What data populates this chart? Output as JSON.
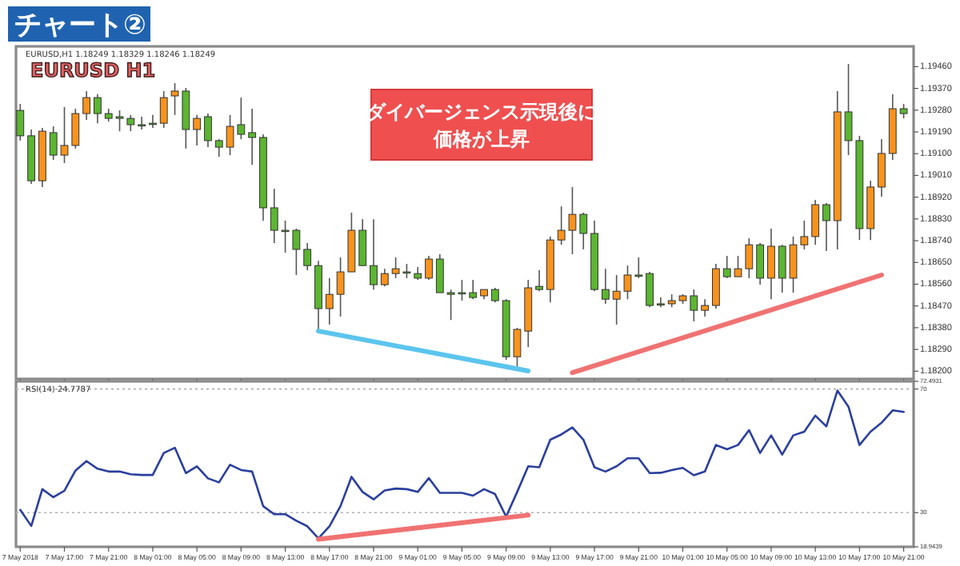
{
  "chart_data": [
    {
      "type": "candlestick",
      "title": "チャート②",
      "annotations": [
        "EURUSD,H1  1.18249 1.18329 1.18246 1.18249",
        "EURUSD H1",
        "ダイバージェンス示現後に",
        "価格が上昇"
      ],
      "x": [
        "2018-05-07T13:00",
        "2018-05-07T14:00",
        "2018-05-07T15:00",
        "2018-05-07T16:00",
        "2018-05-07T17:00",
        "2018-05-07T18:00",
        "2018-05-07T19:00",
        "2018-05-07T20:00",
        "2018-05-07T21:00",
        "2018-05-07T22:00",
        "2018-05-07T23:00",
        "2018-05-08T00:00",
        "2018-05-08T01:00",
        "2018-05-08T02:00",
        "2018-05-08T03:00",
        "2018-05-08T04:00",
        "2018-05-08T05:00",
        "2018-05-08T06:00",
        "2018-05-08T07:00",
        "2018-05-08T08:00",
        "2018-05-08T09:00",
        "2018-05-08T10:00",
        "2018-05-08T11:00",
        "2018-05-08T12:00",
        "2018-05-08T13:00",
        "2018-05-08T14:00",
        "2018-05-08T15:00",
        "2018-05-08T16:00",
        "2018-05-08T17:00",
        "2018-05-08T18:00",
        "2018-05-08T19:00",
        "2018-05-08T20:00",
        "2018-05-08T21:00",
        "2018-05-08T22:00",
        "2018-05-08T23:00",
        "2018-05-09T00:00",
        "2018-05-09T01:00",
        "2018-05-09T02:00",
        "2018-05-09T03:00",
        "2018-05-09T04:00",
        "2018-05-09T05:00",
        "2018-05-09T06:00",
        "2018-05-09T07:00",
        "2018-05-09T08:00",
        "2018-05-09T09:00",
        "2018-05-09T10:00",
        "2018-05-09T11:00",
        "2018-05-09T12:00",
        "2018-05-09T13:00",
        "2018-05-09T14:00",
        "2018-05-09T15:00",
        "2018-05-09T16:00",
        "2018-05-09T17:00",
        "2018-05-09T18:00",
        "2018-05-09T19:00",
        "2018-05-09T20:00",
        "2018-05-09T21:00",
        "2018-05-09T22:00",
        "2018-05-09T23:00",
        "2018-05-10T00:00",
        "2018-05-10T01:00",
        "2018-05-10T02:00",
        "2018-05-10T03:00",
        "2018-05-10T04:00",
        "2018-05-10T05:00",
        "2018-05-10T06:00",
        "2018-05-10T07:00",
        "2018-05-10T08:00",
        "2018-05-10T09:00",
        "2018-05-10T10:00",
        "2018-05-10T11:00",
        "2018-05-10T12:00",
        "2018-05-10T13:00",
        "2018-05-10T14:00",
        "2018-05-10T15:00",
        "2018-05-10T16:00",
        "2018-05-10T17:00",
        "2018-05-10T18:00",
        "2018-05-10T19:00",
        "2018-05-10T20:00",
        "2018-05-10T21:00"
      ],
      "ohlc": [
        [
          1.19279,
          1.19306,
          1.19154,
          1.19174
        ],
        [
          1.19174,
          1.192,
          1.18975,
          1.18988
        ],
        [
          1.18988,
          1.19207,
          1.18962,
          1.19193
        ],
        [
          1.19187,
          1.19213,
          1.19074,
          1.19094
        ],
        [
          1.19094,
          1.19293,
          1.19061,
          1.19134
        ],
        [
          1.19134,
          1.19286,
          1.19121,
          1.19266
        ],
        [
          1.19266,
          1.19359,
          1.1924,
          1.19332
        ],
        [
          1.19332,
          1.19346,
          1.19226,
          1.19266
        ],
        [
          1.19266,
          1.19286,
          1.19233,
          1.19246
        ],
        [
          1.19253,
          1.19279,
          1.19193,
          1.19246
        ],
        [
          1.19246,
          1.1926,
          1.19193,
          1.1922
        ],
        [
          1.1922,
          1.19253,
          1.192,
          1.1922
        ],
        [
          1.19226,
          1.1926,
          1.19207,
          1.19226
        ],
        [
          1.19226,
          1.19359,
          1.19207,
          1.19332
        ],
        [
          1.19339,
          1.19392,
          1.1926,
          1.19359
        ],
        [
          1.19359,
          1.19372,
          1.19121,
          1.192
        ],
        [
          1.192,
          1.1926,
          1.19134,
          1.19246
        ],
        [
          1.19253,
          1.19266,
          1.19127,
          1.19154
        ],
        [
          1.19154,
          1.1916,
          1.19087,
          1.19127
        ],
        [
          1.19127,
          1.1926,
          1.19094,
          1.19213
        ],
        [
          1.1922,
          1.19332,
          1.1916,
          1.1918
        ],
        [
          1.19187,
          1.19286,
          1.19054,
          1.19167
        ],
        [
          1.19167,
          1.1918,
          1.18823,
          1.18876
        ],
        [
          1.18876,
          1.18955,
          1.1873,
          1.18783
        ],
        [
          1.18783,
          1.18823,
          1.1869,
          1.18783
        ],
        [
          1.18783,
          1.1879,
          1.18598,
          1.18704
        ],
        [
          1.18704,
          1.1873,
          1.18618,
          1.18637
        ],
        [
          1.18637,
          1.18657,
          1.18366,
          1.18459
        ],
        [
          1.18459,
          1.18585,
          1.18393,
          1.18518
        ],
        [
          1.18518,
          1.18671,
          1.18426,
          1.18611
        ],
        [
          1.18611,
          1.18856,
          1.18611,
          1.18783
        ],
        [
          1.18783,
          1.18829,
          1.18637,
          1.18637
        ],
        [
          1.18637,
          1.18829,
          1.18538,
          1.18558
        ],
        [
          1.18558,
          1.18624,
          1.18551,
          1.18604
        ],
        [
          1.18604,
          1.18671,
          1.18585,
          1.18624
        ],
        [
          1.18611,
          1.18644,
          1.18585,
          1.18611
        ],
        [
          1.18604,
          1.18631,
          1.18578,
          1.18585
        ],
        [
          1.18585,
          1.18677,
          1.18578,
          1.18664
        ],
        [
          1.18664,
          1.18684,
          1.18525,
          1.18525
        ],
        [
          1.18525,
          1.18538,
          1.18412,
          1.18518
        ],
        [
          1.18525,
          1.18578,
          1.18492,
          1.18525
        ],
        [
          1.18525,
          1.18578,
          1.18498,
          1.18505
        ],
        [
          1.18512,
          1.18538,
          1.18498,
          1.18538
        ],
        [
          1.18538,
          1.18545,
          1.18485,
          1.18492
        ],
        [
          1.18492,
          1.18498,
          1.18247,
          1.1826
        ],
        [
          1.1826,
          1.18379,
          1.18201,
          1.18373
        ],
        [
          1.18366,
          1.18578,
          1.183,
          1.18545
        ],
        [
          1.18551,
          1.18618,
          1.18531,
          1.18538
        ],
        [
          1.18538,
          1.18757,
          1.18485,
          1.18743
        ],
        [
          1.18743,
          1.18882,
          1.18723,
          1.18783
        ],
        [
          1.18783,
          1.18962,
          1.18684,
          1.18849
        ],
        [
          1.18849,
          1.18856,
          1.18704,
          1.1877
        ],
        [
          1.1877,
          1.18823,
          1.18531,
          1.18538
        ],
        [
          1.18538,
          1.18624,
          1.18479,
          1.18498
        ],
        [
          1.18498,
          1.18598,
          1.18393,
          1.18531
        ],
        [
          1.18531,
          1.18637,
          1.18498,
          1.18598
        ],
        [
          1.18598,
          1.18671,
          1.18585,
          1.18598
        ],
        [
          1.18604,
          1.18611,
          1.18465,
          1.18472
        ],
        [
          1.18479,
          1.18505,
          1.18465,
          1.18479
        ],
        [
          1.18479,
          1.18518,
          1.18465,
          1.18492
        ],
        [
          1.18492,
          1.18518,
          1.18479,
          1.18512
        ],
        [
          1.18512,
          1.18538,
          1.18406,
          1.18452
        ],
        [
          1.18452,
          1.18498,
          1.18426,
          1.18472
        ],
        [
          1.18472,
          1.18644,
          1.18459,
          1.18624
        ],
        [
          1.18624,
          1.18677,
          1.18585,
          1.18591
        ],
        [
          1.18591,
          1.18677,
          1.18591,
          1.18624
        ],
        [
          1.18624,
          1.1875,
          1.18585,
          1.18723
        ],
        [
          1.18723,
          1.1873,
          1.18558,
          1.18585
        ],
        [
          1.18585,
          1.1879,
          1.18498,
          1.18717
        ],
        [
          1.18717,
          1.18723,
          1.18525,
          1.18585
        ],
        [
          1.18585,
          1.18757,
          1.18525,
          1.18723
        ],
        [
          1.18723,
          1.18823,
          1.18704,
          1.18757
        ],
        [
          1.18757,
          1.18909,
          1.18723,
          1.18889
        ],
        [
          1.18889,
          1.18896,
          1.18697,
          1.18823
        ],
        [
          1.18823,
          1.19359,
          1.18704,
          1.19273
        ],
        [
          1.19273,
          1.19471,
          1.19094,
          1.19154
        ],
        [
          1.19154,
          1.19174,
          1.18743,
          1.1879
        ],
        [
          1.1879,
          1.18988,
          1.18743,
          1.18962
        ],
        [
          1.18962,
          1.1916,
          1.18922,
          1.19101
        ],
        [
          1.19101,
          1.19346,
          1.19074,
          1.19286
        ],
        [
          1.19286,
          1.19306,
          1.19246,
          1.19266
        ]
      ],
      "colors": [
        "#5cb531",
        "#5cb531",
        "#f7931e",
        "#5cb531",
        "#f7931e",
        "#f7931e",
        "#f7931e",
        "#5cb531",
        "#5cb531",
        "#5cb531",
        "#5cb531",
        "#5cb531",
        "#5cb531",
        "#f7931e",
        "#f7931e",
        "#5cb531",
        "#f7931e",
        "#5cb531",
        "#5cb531",
        "#f7931e",
        "#5cb531",
        "#5cb531",
        "#5cb531",
        "#5cb531",
        "#5cb531",
        "#5cb531",
        "#5cb531",
        "#5cb531",
        "#f7931e",
        "#f7931e",
        "#f7931e",
        "#5cb531",
        "#5cb531",
        "#f7931e",
        "#f7931e",
        "#5cb531",
        "#5cb531",
        "#f7931e",
        "#5cb531",
        "#5cb531",
        "#5cb531",
        "#5cb531",
        "#f7931e",
        "#5cb531",
        "#5cb531",
        "#f7931e",
        "#f7931e",
        "#5cb531",
        "#f7931e",
        "#f7931e",
        "#f7931e",
        "#5cb531",
        "#5cb531",
        "#5cb531",
        "#f7931e",
        "#f7931e",
        "#5cb531",
        "#5cb531",
        "#5cb531",
        "#f7931e",
        "#f7931e",
        "#5cb531",
        "#f7931e",
        "#f7931e",
        "#5cb531",
        "#f7931e",
        "#f7931e",
        "#5cb531",
        "#f7931e",
        "#5cb531",
        "#f7931e",
        "#f7931e",
        "#f7931e",
        "#5cb531",
        "#f7931e",
        "#5cb531",
        "#5cb531",
        "#f7931e",
        "#f7931e",
        "#f7931e",
        "#5cb531"
      ],
      "series": [
        {
          "type": "line",
          "color": "#5bc5ee",
          "x": [
            "2018-05-08T16:00",
            "2018-05-09T11:00"
          ],
          "values": [
            1.18366,
            1.18201
          ]
        },
        {
          "type": "line",
          "color": "#f07272",
          "x": [
            "2018-05-09T15:00",
            "2018-05-10T19:00"
          ],
          "values": [
            1.18194,
            1.18598
          ]
        }
      ],
      "xlim": [
        "2018-05-07T12:37",
        "2018-05-10T21:54"
      ],
      "xticks": [
        {
          "value": "2018-05-07T13:00",
          "label": null
        },
        {
          "value": "2018-05-07T17:00",
          "label": null
        },
        {
          "value": "2018-05-07T21:00",
          "label": null
        },
        {
          "value": "2018-05-08T01:00",
          "label": null
        },
        {
          "value": "2018-05-08T05:00",
          "label": null
        },
        {
          "value": "2018-05-08T09:00",
          "label": null
        },
        {
          "value": "2018-05-08T13:00",
          "label": null
        },
        {
          "value": "2018-05-08T17:00",
          "label": null
        },
        {
          "value": "2018-05-08T21:00",
          "label": null
        },
        {
          "value": "2018-05-09T01:00",
          "label": null
        },
        {
          "value": "2018-05-09T05:00",
          "label": null
        },
        {
          "value": "2018-05-09T09:00",
          "label": null
        },
        {
          "value": "2018-05-09T13:00",
          "label": null
        },
        {
          "value": "2018-05-09T17:00",
          "label": null
        },
        {
          "value": "2018-05-09T21:00",
          "label": null
        },
        {
          "value": "2018-05-10T01:00",
          "label": null
        },
        {
          "value": "2018-05-10T05:00",
          "label": null
        },
        {
          "value": "2018-05-10T09:00",
          "label": null
        },
        {
          "value": "2018-05-10T13:00",
          "label": null
        },
        {
          "value": "2018-05-10T17:00",
          "label": null
        },
        {
          "value": "2018-05-10T21:00",
          "label": null
        }
      ],
      "ylim": [
        1.18168,
        1.19544
      ],
      "yticks": [
        {
          "value": 1.1946,
          "label": "1.19460"
        },
        {
          "value": 1.1937,
          "label": "1.19370"
        },
        {
          "value": 1.1928,
          "label": "1.19280"
        },
        {
          "value": 1.1919,
          "label": "1.19190"
        },
        {
          "value": 1.191,
          "label": "1.19100"
        },
        {
          "value": 1.1901,
          "label": "1.19010"
        },
        {
          "value": 1.1892,
          "label": "1.18920"
        },
        {
          "value": 1.1883,
          "label": "1.18830"
        },
        {
          "value": 1.1874,
          "label": "1.18740"
        },
        {
          "value": 1.1865,
          "label": "1.18650"
        },
        {
          "value": 1.1856,
          "label": "1.18560"
        },
        {
          "value": 1.1847,
          "label": "1.18470"
        },
        {
          "value": 1.1838,
          "label": "1.18380"
        },
        {
          "value": 1.1829,
          "label": "1.18290"
        },
        {
          "value": 1.182,
          "label": "1.18200"
        }
      ],
      "tick_labels": "y"
    },
    {
      "type": "line",
      "annotations": [
        "RSI(14) 24.7787"
      ],
      "x": [
        "2018-05-07T13:00",
        "2018-05-07T14:00",
        "2018-05-07T15:00",
        "2018-05-07T16:00",
        "2018-05-07T17:00",
        "2018-05-07T18:00",
        "2018-05-07T19:00",
        "2018-05-07T20:00",
        "2018-05-07T21:00",
        "2018-05-07T22:00",
        "2018-05-07T23:00",
        "2018-05-08T00:00",
        "2018-05-08T01:00",
        "2018-05-08T02:00",
        "2018-05-08T03:00",
        "2018-05-08T04:00",
        "2018-05-08T05:00",
        "2018-05-08T06:00",
        "2018-05-08T07:00",
        "2018-05-08T08:00",
        "2018-05-08T09:00",
        "2018-05-08T10:00",
        "2018-05-08T11:00",
        "2018-05-08T12:00",
        "2018-05-08T13:00",
        "2018-05-08T14:00",
        "2018-05-08T15:00",
        "2018-05-08T16:00",
        "2018-05-08T17:00",
        "2018-05-08T18:00",
        "2018-05-08T19:00",
        "2018-05-08T20:00",
        "2018-05-08T21:00",
        "2018-05-08T22:00",
        "2018-05-08T23:00",
        "2018-05-09T00:00",
        "2018-05-09T01:00",
        "2018-05-09T02:00",
        "2018-05-09T03:00",
        "2018-05-09T04:00",
        "2018-05-09T05:00",
        "2018-05-09T06:00",
        "2018-05-09T07:00",
        "2018-05-09T08:00",
        "2018-05-09T09:00",
        "2018-05-09T10:00",
        "2018-05-09T11:00",
        "2018-05-09T12:00",
        "2018-05-09T13:00",
        "2018-05-09T14:00",
        "2018-05-09T15:00",
        "2018-05-09T16:00",
        "2018-05-09T17:00",
        "2018-05-09T18:00",
        "2018-05-09T19:00",
        "2018-05-09T20:00",
        "2018-05-09T21:00",
        "2018-05-09T22:00",
        "2018-05-09T23:00",
        "2018-05-10T00:00",
        "2018-05-10T01:00",
        "2018-05-10T02:00",
        "2018-05-10T03:00",
        "2018-05-10T04:00",
        "2018-05-10T05:00",
        "2018-05-10T06:00",
        "2018-05-10T07:00",
        "2018-05-10T08:00",
        "2018-05-10T09:00",
        "2018-05-10T10:00",
        "2018-05-10T11:00",
        "2018-05-10T12:00",
        "2018-05-10T13:00",
        "2018-05-10T14:00",
        "2018-05-10T15:00",
        "2018-05-10T16:00",
        "2018-05-10T17:00",
        "2018-05-10T18:00",
        "2018-05-10T19:00",
        "2018-05-10T20:00",
        "2018-05-10T21:00"
      ],
      "series": [
        {
          "color": "#2a3f9e",
          "values": [
            30.9,
            25.7,
            37.6,
            35.0,
            37.1,
            43.6,
            46.7,
            44.2,
            43.3,
            43.3,
            42.4,
            42.2,
            42.2,
            49.3,
            51.0,
            42.8,
            45.0,
            41.1,
            39.8,
            45.5,
            43.8,
            43.3,
            32.1,
            29.5,
            29.5,
            27.4,
            25.6,
            21.7,
            25.6,
            32.1,
            41.6,
            36.7,
            34.3,
            37.2,
            37.8,
            37.6,
            36.7,
            41.2,
            36.4,
            36.4,
            36.4,
            35.5,
            37.6,
            36.0,
            28.7,
            36.7,
            45.0,
            44.7,
            53.6,
            55.3,
            57.6,
            53.6,
            44.7,
            43.3,
            45.0,
            47.6,
            47.6,
            42.8,
            42.9,
            43.8,
            44.5,
            42.1,
            43.3,
            51.9,
            50.5,
            51.9,
            56.7,
            49.3,
            55.0,
            48.8,
            55.0,
            56.2,
            61.4,
            57.9,
            69.5,
            64.3,
            51.9,
            56.2,
            59.1,
            63.1,
            62.6
          ]
        },
        {
          "color": "#f07272",
          "x": [
            "2018-05-08T16:00",
            "2018-05-09T11:00"
          ],
          "values": [
            21.4,
            29.2
          ]
        }
      ],
      "ref_lines": [
        {
          "axis": "y",
          "value": 70,
          "color": "#b0b0b0",
          "line_style": "dotted"
        },
        {
          "axis": "y",
          "value": 30,
          "color": "#b0b0b0",
          "line_style": "dotted"
        }
      ],
      "xlim": [
        "2018-05-07T12:37",
        "2018-05-10T21:54"
      ],
      "xticks": [
        {
          "value": "2018-05-07T13:00",
          "label": "7 May 2018"
        },
        {
          "value": "2018-05-07T17:00",
          "label": "7 May 17:00"
        },
        {
          "value": "2018-05-07T21:00",
          "label": "7 May 21:00"
        },
        {
          "value": "2018-05-08T01:00",
          "label": "8 May 01:00"
        },
        {
          "value": "2018-05-08T05:00",
          "label": "8 May 05:00"
        },
        {
          "value": "2018-05-08T09:00",
          "label": "8 May 09:00"
        },
        {
          "value": "2018-05-08T13:00",
          "label": "8 May 13:00"
        },
        {
          "value": "2018-05-08T17:00",
          "label": "8 May 17:00"
        },
        {
          "value": "2018-05-08T21:00",
          "label": "8 May 21:00"
        },
        {
          "value": "2018-05-09T01:00",
          "label": "9 May 01:00"
        },
        {
          "value": "2018-05-09T05:00",
          "label": "9 May 05:00"
        },
        {
          "value": "2018-05-09T09:00",
          "label": "9 May 09:00"
        },
        {
          "value": "2018-05-09T13:00",
          "label": "9 May 13:00"
        },
        {
          "value": "2018-05-09T17:00",
          "label": "9 May 17:00"
        },
        {
          "value": "2018-05-09T21:00",
          "label": "9 May 21:00"
        },
        {
          "value": "2018-05-10T01:00",
          "label": "10 May 01:00"
        },
        {
          "value": "2018-05-10T05:00",
          "label": "10 May 05:00"
        },
        {
          "value": "2018-05-10T09:00",
          "label": "10 May 09:00"
        },
        {
          "value": "2018-05-10T13:00",
          "label": "10 May 13:00"
        },
        {
          "value": "2018-05-10T17:00",
          "label": "10 May 17:00"
        },
        {
          "value": "2018-05-10T21:00",
          "label": "10 May 21:00"
        }
      ],
      "ylim": [
        18.9439,
        72.4931
      ],
      "yticks": [
        72.4931,
        70,
        30,
        18.9439
      ]
    }
  ]
}
